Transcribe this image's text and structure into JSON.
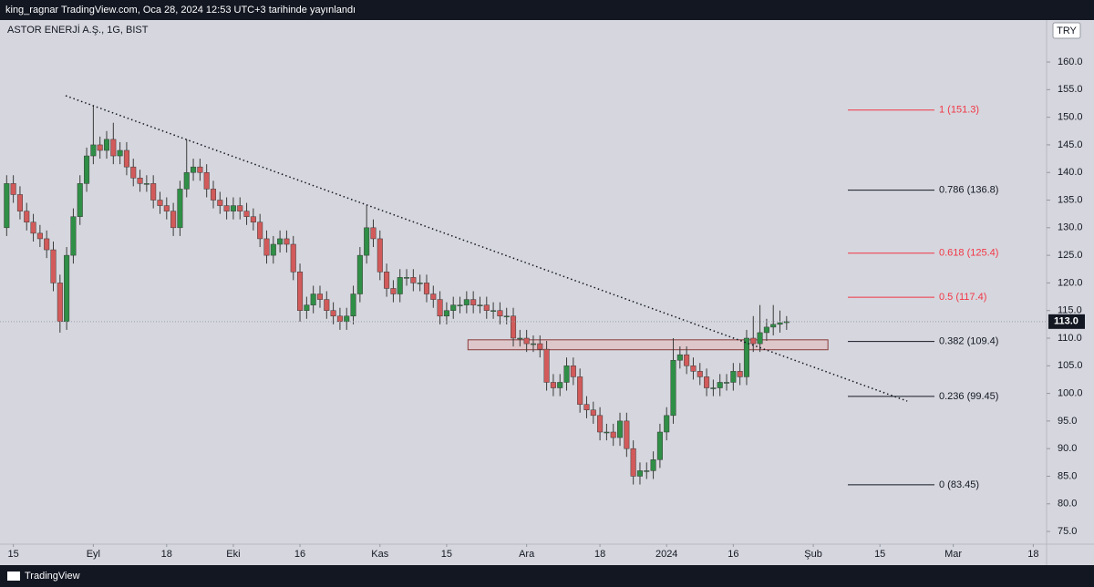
{
  "header": {
    "text": "king_ragnar TradingView.com, Oca 28, 2024 12:53 UTC+3 tarihinde yayınlandı"
  },
  "footer": {
    "text": "TradingView"
  },
  "chart_data": {
    "type": "candlestick",
    "title": "ASTOR ENERJİ A.Ş., 1G, BIST",
    "currency": "TRY",
    "up_color": "#2f8f46",
    "down_color": "#d25a5a",
    "open": [
      130,
      138,
      136,
      133,
      131,
      129,
      128,
      126,
      120,
      113,
      125,
      132,
      138,
      143,
      145,
      144,
      146,
      143,
      144,
      141,
      139,
      138,
      138,
      135,
      134,
      133,
      130,
      137,
      140,
      141,
      140,
      137,
      135,
      134,
      133,
      134,
      133,
      132,
      131,
      128,
      125,
      127,
      128,
      127,
      122,
      115,
      116,
      118,
      117,
      115,
      114,
      113,
      114,
      118,
      125,
      130,
      128,
      122,
      119,
      118,
      121,
      121,
      120,
      120,
      118,
      117,
      114,
      115,
      116,
      116,
      117,
      116,
      116,
      115,
      115,
      114,
      114,
      110,
      110,
      109,
      109,
      108,
      102,
      101,
      102,
      105,
      103,
      98,
      97,
      96,
      93,
      93,
      92,
      95,
      90,
      85,
      86,
      86,
      88,
      93,
      96,
      106,
      107,
      105,
      104,
      103,
      101,
      101,
      102,
      102,
      104,
      103,
      110,
      109,
      111,
      112,
      112.5,
      112.8
    ],
    "high": [
      139.5,
      139.5,
      137.5,
      134.5,
      132.5,
      130.5,
      129.5,
      127.5,
      121.5,
      126.5,
      133.5,
      139.5,
      144.5,
      152,
      146.5,
      147.5,
      149,
      145.5,
      145.5,
      142.5,
      140.5,
      139.5,
      139.5,
      136.5,
      135.5,
      134.5,
      138.5,
      146,
      142.5,
      142.5,
      141.5,
      138.5,
      136.5,
      135.5,
      135.5,
      135.5,
      134.5,
      133.5,
      132.5,
      129.5,
      128.5,
      129.5,
      129.5,
      128.5,
      123.5,
      117.5,
      119.5,
      119.5,
      118.5,
      116.5,
      115.5,
      115.5,
      119.5,
      126.5,
      134,
      131.5,
      129.5,
      123.5,
      120.5,
      122.5,
      122.5,
      122.5,
      121.5,
      121.5,
      119.5,
      118.5,
      116.5,
      117.5,
      117.5,
      118.5,
      118.5,
      117.5,
      117.5,
      116.5,
      116.5,
      115.5,
      115.5,
      111.5,
      111.5,
      110.5,
      110.5,
      109.5,
      103.5,
      103.5,
      106.5,
      106.5,
      104.5,
      99.5,
      98.5,
      97.5,
      94.5,
      94.5,
      96.5,
      96.5,
      91.5,
      87.5,
      87.5,
      89.5,
      94.5,
      97.5,
      110,
      108.5,
      108.5,
      106.5,
      105.5,
      104.5,
      102.5,
      103.5,
      103.5,
      105.5,
      105.5,
      111.5,
      114,
      116,
      113.5,
      116,
      115,
      114
    ],
    "low": [
      128.5,
      134.5,
      131.5,
      129.5,
      127.5,
      126.5,
      124.5,
      118.5,
      111,
      111.5,
      123.5,
      130.5,
      136.5,
      141.5,
      142.5,
      142.5,
      141.5,
      141.5,
      139.5,
      137.5,
      136.5,
      136.5,
      133.5,
      132.5,
      131.5,
      128.5,
      128.5,
      135.5,
      138.5,
      138.5,
      135.5,
      133.5,
      132.5,
      131.5,
      131.5,
      131.5,
      130.5,
      129.5,
      126.5,
      123.5,
      123.5,
      125.5,
      125.5,
      120.5,
      113,
      113.5,
      114.5,
      115.5,
      113.5,
      112.5,
      111.5,
      111.5,
      112.5,
      116.5,
      123.5,
      126.5,
      120.5,
      117.5,
      116.5,
      116.5,
      119.5,
      118.5,
      118.5,
      116.5,
      115.5,
      112.5,
      112.5,
      113.5,
      114.5,
      114.5,
      114.5,
      114.5,
      113.5,
      113.5,
      112.5,
      112.5,
      108.5,
      108.5,
      107.5,
      107.5,
      106.5,
      100.5,
      99.5,
      99.5,
      100.5,
      101.5,
      96.5,
      95.5,
      94.5,
      91.5,
      91.5,
      90.5,
      90.5,
      88.5,
      83.5,
      83.5,
      84.5,
      84.5,
      86.5,
      91.5,
      94.5,
      104.5,
      103.5,
      102.5,
      101.5,
      99.5,
      99.5,
      99.5,
      100.5,
      100.5,
      101.5,
      101.5,
      107.5,
      107.5,
      109.5,
      110.5,
      111,
      111.5
    ],
    "close": [
      138,
      136,
      133,
      131,
      129,
      128,
      126,
      120,
      113,
      125,
      132,
      138,
      143,
      145,
      144,
      146,
      143,
      144,
      141,
      139,
      138,
      138,
      135,
      134,
      133,
      130,
      137,
      140,
      141,
      140,
      137,
      135,
      134,
      133,
      134,
      133,
      132,
      131,
      128,
      125,
      127,
      128,
      127,
      122,
      115,
      116,
      118,
      117,
      115,
      114,
      113,
      114,
      118,
      125,
      130,
      128,
      122,
      119,
      118,
      121,
      121,
      120,
      120,
      118,
      117,
      114,
      115,
      116,
      116,
      117,
      116,
      116,
      115,
      115,
      114,
      114,
      110,
      110,
      109,
      109,
      108,
      102,
      101,
      102,
      105,
      103,
      98,
      97,
      96,
      93,
      93,
      92,
      95,
      90,
      85,
      86,
      86,
      88,
      93,
      96,
      106,
      107,
      105,
      104,
      103,
      101,
      101,
      102,
      102,
      104,
      103,
      110,
      109,
      111,
      112,
      112.5,
      112.8,
      113
    ],
    "xlim": [
      -1,
      156
    ],
    "xticks": [
      {
        "value": 1,
        "label": "15"
      },
      {
        "value": 13,
        "label": "Eyl"
      },
      {
        "value": 24,
        "label": "18"
      },
      {
        "value": 34,
        "label": "Eki"
      },
      {
        "value": 44,
        "label": "16"
      },
      {
        "value": 56,
        "label": "Kas"
      },
      {
        "value": 66,
        "label": "15"
      },
      {
        "value": 78,
        "label": "Ara"
      },
      {
        "value": 89,
        "label": "18"
      },
      {
        "value": 99,
        "label": "2024"
      },
      {
        "value": 109,
        "label": "16"
      },
      {
        "value": 121,
        "label": "Şub"
      },
      {
        "value": 131,
        "label": "15"
      },
      {
        "value": 142,
        "label": "Mar"
      },
      {
        "value": 154,
        "label": "18"
      }
    ],
    "ylim": [
      72.7,
      167.6
    ],
    "yticks": [
      {
        "value": 75,
        "label": "75.0"
      },
      {
        "value": 80,
        "label": "80.0"
      },
      {
        "value": 85,
        "label": "85.0"
      },
      {
        "value": 90,
        "label": "90.0"
      },
      {
        "value": 95,
        "label": "95.0"
      },
      {
        "value": 100,
        "label": "100.0"
      },
      {
        "value": 105,
        "label": "105.0"
      },
      {
        "value": 110,
        "label": "110.0"
      },
      {
        "value": 115,
        "label": "115.0"
      },
      {
        "value": 120,
        "label": "120.0"
      },
      {
        "value": 125,
        "label": "125.0"
      },
      {
        "value": 130,
        "label": "130.0"
      },
      {
        "value": 135,
        "label": "135.0"
      },
      {
        "value": 140,
        "label": "140.0"
      },
      {
        "value": 145,
        "label": "145.0"
      },
      {
        "value": 150,
        "label": "150.0"
      },
      {
        "value": 155,
        "label": "155.0"
      },
      {
        "value": 160,
        "label": "160.0"
      }
    ],
    "last_price": {
      "value": 113,
      "label": "113.0"
    },
    "fib_levels": [
      {
        "label": "1 (151.3)",
        "price": 151.3,
        "color": "#f23645"
      },
      {
        "label": "0.786 (136.8)",
        "price": 136.8,
        "color": "#131722"
      },
      {
        "label": "0.618 (125.4)",
        "price": 125.4,
        "color": "#f23645"
      },
      {
        "label": "0.5 (117.4)",
        "price": 117.4,
        "color": "#f23645"
      },
      {
        "label": "0.382 (109.4)",
        "price": 109.4,
        "color": "#131722"
      },
      {
        "label": "0.236 (99.45)",
        "price": 99.45,
        "color": "#131722"
      },
      {
        "label": "0 (83.45)",
        "price": 83.45,
        "color": "#131722"
      }
    ],
    "trendline": {
      "start": [
        8.85,
        153.9
      ],
      "end": [
        135.1,
        98.6
      ]
    },
    "zone": {
      "x": [
        69.2,
        123.2
      ],
      "price": [
        107.9,
        109.7
      ]
    },
    "grid": false
  }
}
